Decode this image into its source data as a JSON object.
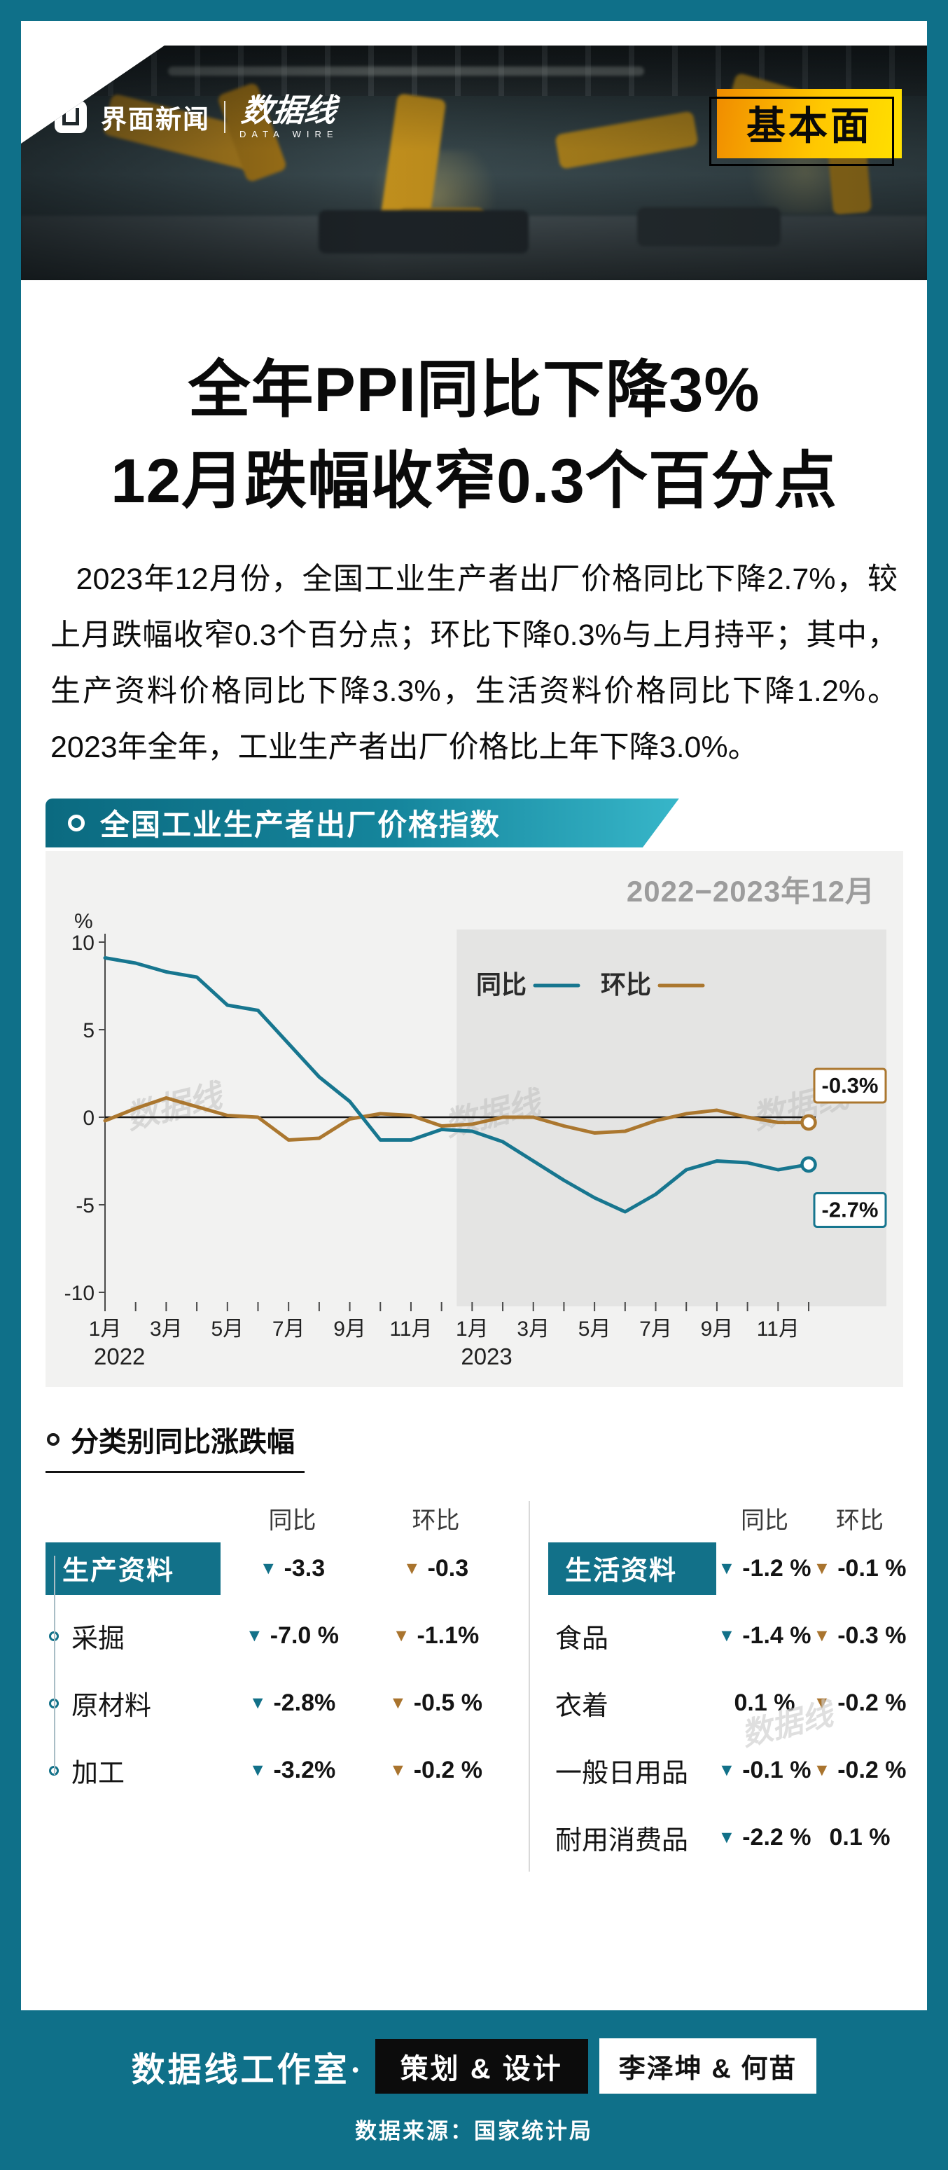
{
  "brand": {
    "left": "界面新闻",
    "right": "数据线",
    "right_sub": "DATA WIRE",
    "corner_badge": "基本面"
  },
  "watermark": "数据线",
  "headline": {
    "line1": "全年PPI同比下降3%",
    "line2": "12月跌幅收窄0.3个百分点"
  },
  "intro": "2023年12月份，全国工业生产者出厂价格同比下降2.7%，较上月跌幅收窄0.3个百分点；环比下降0.3%与上月持平；其中，生产资料价格同比下降3.3%，生活资料价格同比下降1.2%。2023年全年，工业生产者出厂价格比上年下降3.0%。",
  "chart_section": {
    "title": "全国工业生产者出厂价格指数",
    "subtitle": "2022−2023年12月"
  },
  "chart_data": {
    "type": "line",
    "title": "全国工业生产者出厂价格指数",
    "subtitle": "2022−2023年12月",
    "unit": "%",
    "ylim": [
      -10,
      10
    ],
    "yticks": [
      10,
      5,
      0,
      -5,
      -10
    ],
    "x_tick_labels": [
      "1月",
      "3月",
      "5月",
      "7月",
      "9月",
      "11月",
      "1月",
      "3月",
      "5月",
      "7月",
      "9月",
      "11月"
    ],
    "year_labels": [
      {
        "label": "2022",
        "position": 0
      },
      {
        "label": "2023",
        "position": 12
      }
    ],
    "highlight_region": {
      "start_index": 12,
      "end_index": 23
    },
    "legend_position": "top-right",
    "series": [
      {
        "name": "同比",
        "color": "#17768f",
        "values": [
          9.1,
          8.8,
          8.3,
          8.0,
          6.4,
          6.1,
          4.2,
          2.3,
          0.9,
          -1.3,
          -1.3,
          -0.7,
          -0.8,
          -1.4,
          -2.5,
          -3.6,
          -4.6,
          -5.4,
          -4.4,
          -3.0,
          -2.5,
          -2.6,
          -3.0,
          -2.7
        ],
        "end_label": "-2.7%",
        "end_label_anchor_value": -5.3
      },
      {
        "name": "环比",
        "color": "#ab772f",
        "values": [
          -0.2,
          0.5,
          1.1,
          0.6,
          0.1,
          0.0,
          -1.3,
          -1.2,
          -0.1,
          0.2,
          0.1,
          -0.5,
          -0.4,
          0.0,
          0.0,
          -0.5,
          -0.9,
          -0.8,
          -0.2,
          0.2,
          0.4,
          0.0,
          -0.3,
          -0.3
        ],
        "end_label": "-0.3%",
        "end_label_anchor_value": 1.8
      }
    ]
  },
  "breakdown": {
    "section_title": "分类别同比涨跌幅",
    "col_headers": [
      "同比",
      "环比"
    ],
    "groups": [
      {
        "name": "生产资料",
        "bullets": true,
        "header_values": {
          "yoy": "-3.3",
          "yoy_down": true,
          "mom": "-0.3",
          "mom_down": true
        },
        "rows": [
          {
            "label": "采掘",
            "yoy": "-7.0 %",
            "yoy_down": true,
            "mom": "-1.1%",
            "mom_down": true
          },
          {
            "label": "原材料",
            "yoy": "-2.8%",
            "yoy_down": true,
            "mom": "-0.5 %",
            "mom_down": true
          },
          {
            "label": "加工",
            "yoy": "-3.2%",
            "yoy_down": true,
            "mom": "-0.2 %",
            "mom_down": true
          }
        ]
      },
      {
        "name": "生活资料",
        "bullets": false,
        "header_values": {
          "yoy": "-1.2 %",
          "yoy_down": true,
          "mom": "-0.1 %",
          "mom_down": true
        },
        "rows": [
          {
            "label": "食品",
            "yoy": "-1.4 %",
            "yoy_down": true,
            "mom": "-0.3 %",
            "mom_down": true
          },
          {
            "label": "衣着",
            "yoy": "0.1 %",
            "yoy_down": false,
            "mom": "-0.2 %",
            "mom_down": true
          },
          {
            "label": "一般日用品",
            "yoy": "-0.1 %",
            "yoy_down": true,
            "mom": "-0.2 %",
            "mom_down": true
          },
          {
            "label": "耐用消费品",
            "yoy": "-2.2 %",
            "yoy_down": true,
            "mom": "0.1 %",
            "mom_down": false
          }
        ]
      }
    ]
  },
  "footer": {
    "studio": "数据线工作室·",
    "credit_label": "策划 & 设计",
    "credit_names": "李泽坤 & 何苗",
    "source": "数据来源：国家统计局"
  },
  "colors": {
    "teal": "#0f7089",
    "line_yoy": "#17768f",
    "line_mom": "#ab772f",
    "badge_yellow_start": "#f08c00",
    "badge_yellow_end": "#ffe000"
  }
}
